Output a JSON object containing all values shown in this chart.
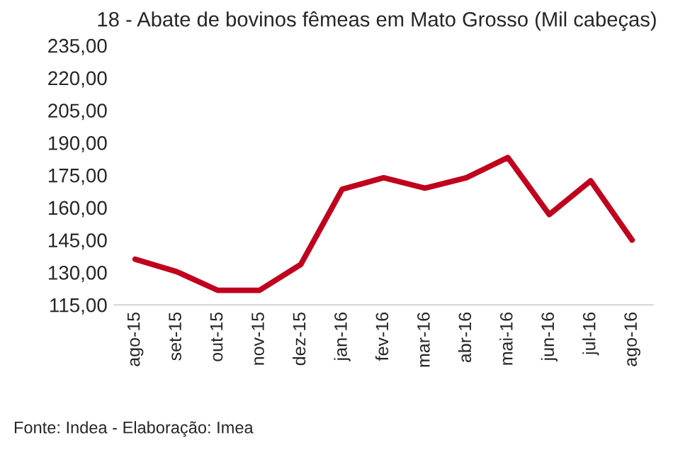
{
  "chart_data": {
    "type": "line",
    "title": "18 - Abate de bovinos fêmeas em Mato Grosso (Mil cabeças)",
    "categories": [
      "ago-15",
      "set-15",
      "out-15",
      "nov-15",
      "dez-15",
      "jan-16",
      "fev-16",
      "mar-16",
      "abr-16",
      "mai-16",
      "jun-16",
      "jul-16",
      "ago-16"
    ],
    "series": [
      {
        "color": "#c0001c",
        "values": [
          136.1,
          130.4,
          121.7,
          121.7,
          133.7,
          168.5,
          173.8,
          169.0,
          173.8,
          183.2,
          156.8,
          172.4,
          145.0
        ]
      }
    ],
    "ylim": [
      115,
      235
    ],
    "yticks": [
      {
        "value": 115,
        "label": "115,00"
      },
      {
        "value": 130,
        "label": "130,00"
      },
      {
        "value": 145,
        "label": "145,00"
      },
      {
        "value": 160,
        "label": "160,00"
      },
      {
        "value": 175,
        "label": "175,00"
      },
      {
        "value": 190,
        "label": "190,00"
      },
      {
        "value": 205,
        "label": "205,00"
      },
      {
        "value": 220,
        "label": "220,00"
      },
      {
        "value": 235,
        "label": "235,00"
      }
    ],
    "grid": false,
    "marker": "none",
    "line_style": "solid",
    "annotations": [
      "Fonte: Indea - Elaboração: Imea"
    ]
  }
}
